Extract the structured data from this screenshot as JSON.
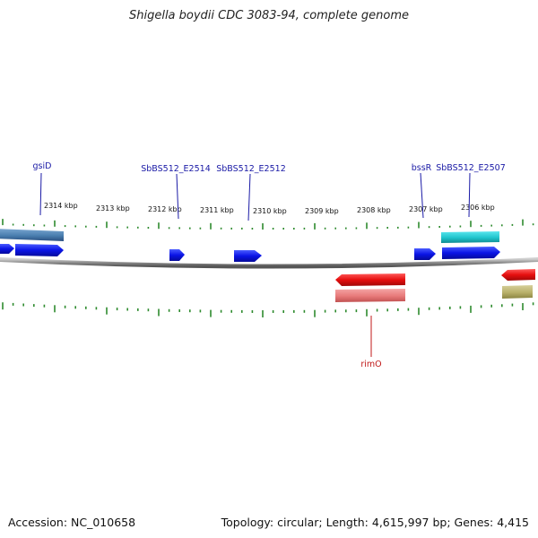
{
  "title": "Shigella boydii CDC 3083-94, complete genome",
  "footer": {
    "accession": "Accession: NC_010658",
    "stats": "Topology: circular; Length: 4,615,997 bp; Genes: 4,415"
  },
  "scale_labels": [
    "2314 kbp",
    "2313 kbp",
    "2312 kbp",
    "2311 kbp",
    "2310 kbp",
    "2309 kbp",
    "2308 kbp",
    "2307 kbp",
    "2306 kbp"
  ],
  "gene_labels": {
    "gsiD": "gsiD",
    "sbbs512_e2514": "SbBS512_E2514",
    "sbbs512_e2512": "SbBS512_E2512",
    "bssR": "bssR",
    "sbbs512_e2507": "SbBS512_E2507",
    "rimO": "rimO"
  },
  "colors": {
    "forward_cds": "#0a14e6",
    "reverse_cds": "#e60f0f",
    "forward_gene": "#4a7fb0",
    "cyan_feature": "#1fc4cc",
    "reverse_gene": "#e87a7a",
    "olive_feature": "#b8b06a",
    "backbone": "#8a8a8a",
    "ticks": "#2e8b2e",
    "forward_label": "#1a1aa6",
    "reverse_label": "#c01818"
  }
}
